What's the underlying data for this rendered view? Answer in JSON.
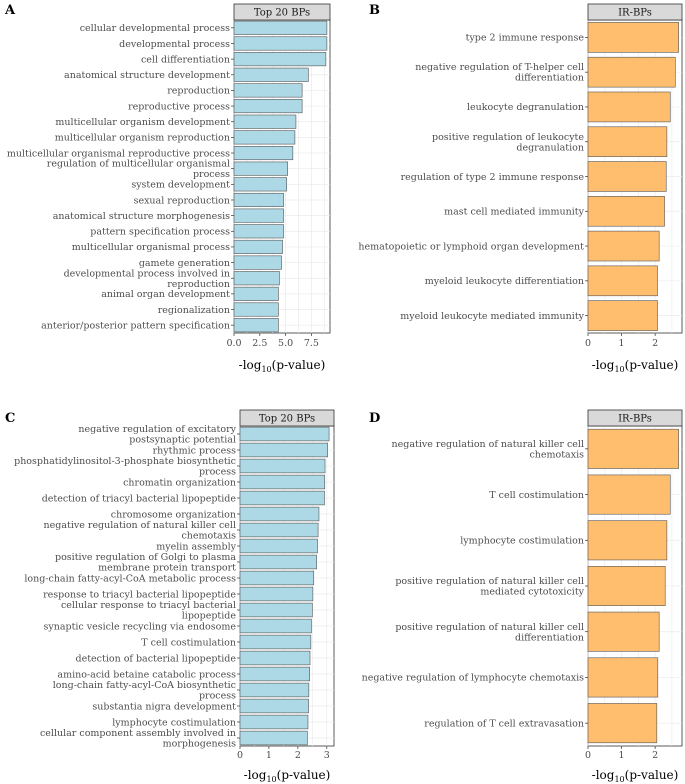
{
  "colors": {
    "blue": "#add8e6",
    "orange": "#ffbe6e",
    "strip_bg": "#d9d9d9",
    "grid": "#ebebeb",
    "bar_stroke": "#555555"
  },
  "chart_data": [
    {
      "panel": "A",
      "type": "bar",
      "orientation": "horizontal",
      "title": "Top 20 BPs",
      "xlabel_main": "-log",
      "xlabel_sub": "10",
      "xlabel_tail": "(p-value)",
      "xlim": [
        0,
        9.3
      ],
      "xticks": [
        "0.0",
        "2.5",
        "5.0",
        "7.5"
      ],
      "xtick_values": [
        0,
        2.5,
        5,
        7.5
      ],
      "color": "#add8e6",
      "categories": [
        [
          "cellular developmental process"
        ],
        [
          "developmental process"
        ],
        [
          "cell differentiation"
        ],
        [
          "anatomical structure development"
        ],
        [
          "reproduction"
        ],
        [
          "reproductive process"
        ],
        [
          "multicellular organism development"
        ],
        [
          "multicellular organism reproduction"
        ],
        [
          "multicellular organismal reproductive process"
        ],
        [
          "regulation of multicellular organismal",
          "process"
        ],
        [
          "system development"
        ],
        [
          "sexual reproduction"
        ],
        [
          "anatomical structure morphogenesis"
        ],
        [
          "pattern specification process"
        ],
        [
          "multicellular organismal process"
        ],
        [
          "gamete generation"
        ],
        [
          "developmental process involved in",
          "reproduction"
        ],
        [
          "animal organ development"
        ],
        [
          "regionalization"
        ],
        [
          "anterior/posterior pattern specification"
        ]
      ],
      "values": [
        9.0,
        9.0,
        8.9,
        7.2,
        6.6,
        6.6,
        6.0,
        5.9,
        5.7,
        5.2,
        5.1,
        4.8,
        4.8,
        4.8,
        4.7,
        4.6,
        4.4,
        4.3,
        4.3,
        4.3
      ]
    },
    {
      "panel": "B",
      "type": "bar",
      "orientation": "horizontal",
      "title": "IR-BPs",
      "xlabel_main": "-log",
      "xlabel_sub": "10",
      "xlabel_tail": "(p-value)",
      "xlim": [
        0,
        2.8
      ],
      "xticks": [
        "0",
        "1",
        "2"
      ],
      "xtick_values": [
        0,
        1,
        2
      ],
      "color": "#ffbe6e",
      "categories": [
        [
          "type 2 immune response"
        ],
        [
          "negative regulation of T-helper cell",
          "differentiation"
        ],
        [
          "leukocyte degranulation"
        ],
        [
          "positive regulation of leukocyte",
          "degranulation"
        ],
        [
          "regulation of type 2 immune response"
        ],
        [
          "mast cell mediated immunity"
        ],
        [
          "hematopoietic or lymphoid organ development"
        ],
        [
          "myeloid leukocyte differentiation"
        ],
        [
          "myeloid leukocyte mediated immunity"
        ]
      ],
      "values": [
        2.7,
        2.6,
        2.45,
        2.35,
        2.33,
        2.28,
        2.12,
        2.07,
        2.07
      ]
    },
    {
      "panel": "C",
      "type": "bar",
      "orientation": "horizontal",
      "title": "Top 20 BPs",
      "xlabel_main": "-log",
      "xlabel_sub": "10",
      "xlabel_tail": "(p-value)",
      "xlim": [
        0,
        3.25
      ],
      "xticks": [
        "0",
        "1",
        "2",
        "3"
      ],
      "xtick_values": [
        0,
        1,
        2,
        3
      ],
      "color": "#add8e6",
      "categories": [
        [
          "negative regulation of excitatory",
          "postsynaptic potential"
        ],
        [
          "rhythmic process"
        ],
        [
          "phosphatidylinositol-3-phosphate biosynthetic",
          "process"
        ],
        [
          "chromatin organization"
        ],
        [
          "detection of triacyl bacterial lipopeptide"
        ],
        [
          "chromosome organization"
        ],
        [
          "negative regulation of natural killer cell",
          "chemotaxis"
        ],
        [
          "myelin assembly"
        ],
        [
          "positive regulation of Golgi to plasma",
          "membrane protein transport"
        ],
        [
          "long-chain fatty-acyl-CoA metabolic process"
        ],
        [
          "response to triacyl bacterial lipopeptide"
        ],
        [
          "cellular response to triacyl bacterial",
          "lipopeptide"
        ],
        [
          "synaptic vesicle recycling via endosome"
        ],
        [
          "T cell costimulation"
        ],
        [
          "detection of bacterial lipopeptide"
        ],
        [
          "amino-acid betaine catabolic process"
        ],
        [
          "long-chain fatty-acyl-CoA biosynthetic",
          "process"
        ],
        [
          "substantia nigra development"
        ],
        [
          "lymphocyte costimulation"
        ],
        [
          "cellular component assembly involved in",
          "morphogenesis"
        ]
      ],
      "values": [
        3.08,
        3.03,
        2.94,
        2.93,
        2.92,
        2.73,
        2.7,
        2.68,
        2.65,
        2.55,
        2.52,
        2.5,
        2.47,
        2.45,
        2.42,
        2.41,
        2.38,
        2.37,
        2.35,
        2.33
      ]
    },
    {
      "panel": "D",
      "type": "bar",
      "orientation": "horizontal",
      "title": "IR-BPs",
      "xlabel_main": "-log",
      "xlabel_sub": "10",
      "xlabel_tail": "(p-value)",
      "xlim": [
        0,
        2.8
      ],
      "xticks": [
        "0",
        "1",
        "2"
      ],
      "xtick_values": [
        0,
        1,
        2
      ],
      "color": "#ffbe6e",
      "categories": [
        [
          "negative regulation of natural killer cell",
          "chemotaxis"
        ],
        [
          "T cell costimulation"
        ],
        [
          "lymphocyte costimulation"
        ],
        [
          "positive regulation of natural killer cell",
          "mediated cytotoxicity"
        ],
        [
          "positive regulation of natural killer cell",
          "differentiation"
        ],
        [
          "negative regulation of lymphocyte chemotaxis"
        ],
        [
          "regulation of T cell extravasation"
        ]
      ],
      "values": [
        2.7,
        2.45,
        2.35,
        2.3,
        2.12,
        2.08,
        2.05
      ]
    }
  ]
}
